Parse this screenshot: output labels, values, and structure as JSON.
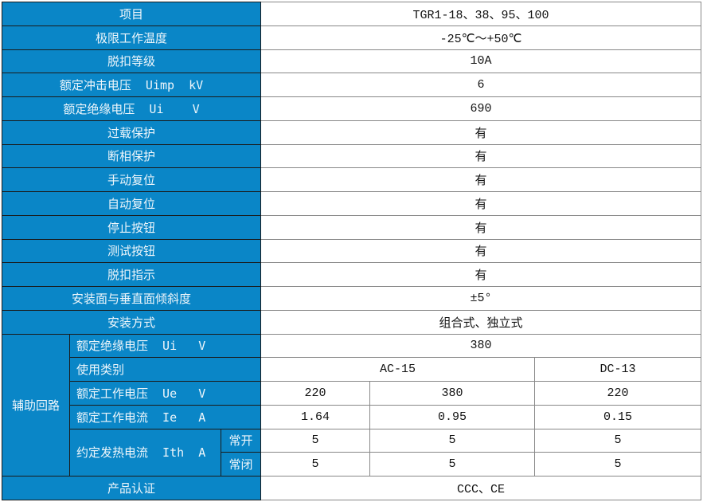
{
  "rows": [
    {
      "label": "项目",
      "value": "TGR1-18、38、95、100"
    },
    {
      "label": "极限工作温度",
      "value": "-25℃～+50℃"
    },
    {
      "label": "脱扣等级",
      "value": "10A"
    },
    {
      "label": "额定冲击电压  Uimp  kV",
      "value": "6"
    },
    {
      "label": "额定绝缘电压  Ui    V",
      "value": "690"
    },
    {
      "label": "过载保护",
      "value": "有"
    },
    {
      "label": "断相保护",
      "value": "有"
    },
    {
      "label": "手动复位",
      "value": "有"
    },
    {
      "label": "自动复位",
      "value": "有"
    },
    {
      "label": "停止按钮",
      "value": "有"
    },
    {
      "label": "测试按钮",
      "value": "有"
    },
    {
      "label": "脱扣指示",
      "value": "有"
    },
    {
      "label": "安装面与垂直面倾斜度",
      "value": "±5°"
    },
    {
      "label": "安装方式",
      "value": "组合式、独立式"
    }
  ],
  "aux": {
    "group_label": "辅助回路",
    "insulation": {
      "label": "额定绝缘电压  Ui   V",
      "value": "380"
    },
    "category": {
      "label": "使用类别",
      "ac": "AC-15",
      "dc": "DC-13"
    },
    "voltage": {
      "label": "额定工作电压  Ue   V",
      "values": [
        "220",
        "380",
        "220"
      ]
    },
    "current": {
      "label": "额定工作电流  Ie   A",
      "values": [
        "1.64",
        "0.95",
        "0.15"
      ]
    },
    "thermal": {
      "label": "约定发热电流  Ith  A",
      "no": {
        "label": "常开",
        "values": [
          "5",
          "5",
          "5"
        ]
      },
      "nc": {
        "label": "常闭",
        "values": [
          "5",
          "5",
          "5"
        ]
      }
    }
  },
  "cert": {
    "label": "产品认证",
    "value": "CCC、CE"
  },
  "colors": {
    "header_blue": "#0a86c7"
  }
}
